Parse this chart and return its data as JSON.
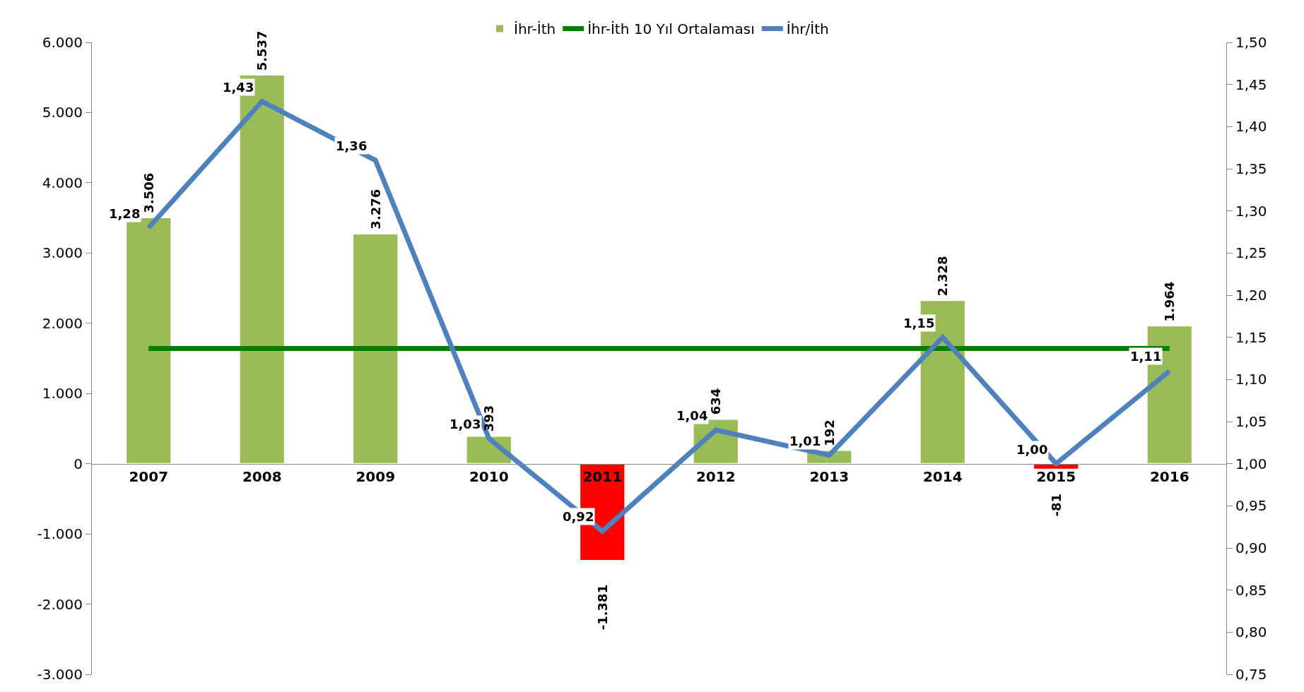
{
  "chart_data": {
    "type": "bar",
    "categories": [
      "2007",
      "2008",
      "2009",
      "2010",
      "2011",
      "2012",
      "2013",
      "2014",
      "2015",
      "2016"
    ],
    "series": [
      {
        "name": "İhr-İth",
        "colors": [
          "#9bbb59",
          "#9bbb59",
          "#9bbb59",
          "#9bbb59",
          "#ff0000",
          "#9bbb59",
          "#9bbb59",
          "#9bbb59",
          "#ff0000",
          "#9bbb59"
        ],
        "values": [
          3506,
          5537,
          3276,
          393,
          -1381,
          634,
          192,
          2328,
          -81,
          1964
        ],
        "value_labels": [
          "3.506",
          "5.537",
          "3.276",
          "393",
          "-1.381",
          "634",
          "192",
          "2.328",
          "-81",
          "1.964"
        ]
      },
      {
        "name": "İhr-İth 10 Yıl Ortalaması",
        "type": "line",
        "color": "#008000",
        "values": [
          1640,
          1640,
          1640,
          1640,
          1640,
          1640,
          1640,
          1640,
          1640,
          1640
        ]
      },
      {
        "name": "İhr/İth",
        "type": "line",
        "axis": "y2",
        "color": "#4f81bd",
        "values": [
          1.28,
          1.43,
          1.36,
          1.03,
          0.92,
          1.04,
          1.01,
          1.15,
          1.0,
          1.11
        ],
        "value_labels": [
          "1,28",
          "1,43",
          "1,36",
          "1,03",
          "0,92",
          "1,04",
          "1,01",
          "1,15",
          "1,00",
          "1,11"
        ]
      }
    ],
    "ylim": [
      -3000,
      6000
    ],
    "yticks": [
      {
        "value": -3000,
        "label": "-3.000"
      },
      {
        "value": -2000,
        "label": "-2.000"
      },
      {
        "value": -1000,
        "label": "-1.000"
      },
      0,
      {
        "value": 1000,
        "label": "1.000"
      },
      {
        "value": 2000,
        "label": "2.000"
      },
      {
        "value": 3000,
        "label": "3.000"
      },
      {
        "value": 4000,
        "label": "4.000"
      },
      {
        "value": 5000,
        "label": "5.000"
      },
      {
        "value": 6000,
        "label": "6.000"
      }
    ],
    "y2lim": [
      0.75,
      1.5
    ],
    "y2ticks": [
      {
        "value": 0.75,
        "label": "0,75"
      },
      {
        "value": 0.8,
        "label": "0,80"
      },
      {
        "value": 0.85,
        "label": "0,85"
      },
      {
        "value": 0.9,
        "label": "0,90"
      },
      {
        "value": 0.95,
        "label": "0,95"
      },
      {
        "value": 1.0,
        "label": "1,00"
      },
      {
        "value": 1.05,
        "label": "1,05"
      },
      {
        "value": 1.1,
        "label": "1,10"
      },
      {
        "value": 1.15,
        "label": "1,15"
      },
      {
        "value": 1.2,
        "label": "1,20"
      },
      {
        "value": 1.25,
        "label": "1,25"
      },
      {
        "value": 1.3,
        "label": "1,30"
      },
      {
        "value": 1.35,
        "label": "1,35"
      },
      {
        "value": 1.4,
        "label": "1,40"
      },
      {
        "value": 1.45,
        "label": "1,45"
      },
      {
        "value": 1.5,
        "label": "1,50"
      }
    ],
    "legend": "top"
  }
}
